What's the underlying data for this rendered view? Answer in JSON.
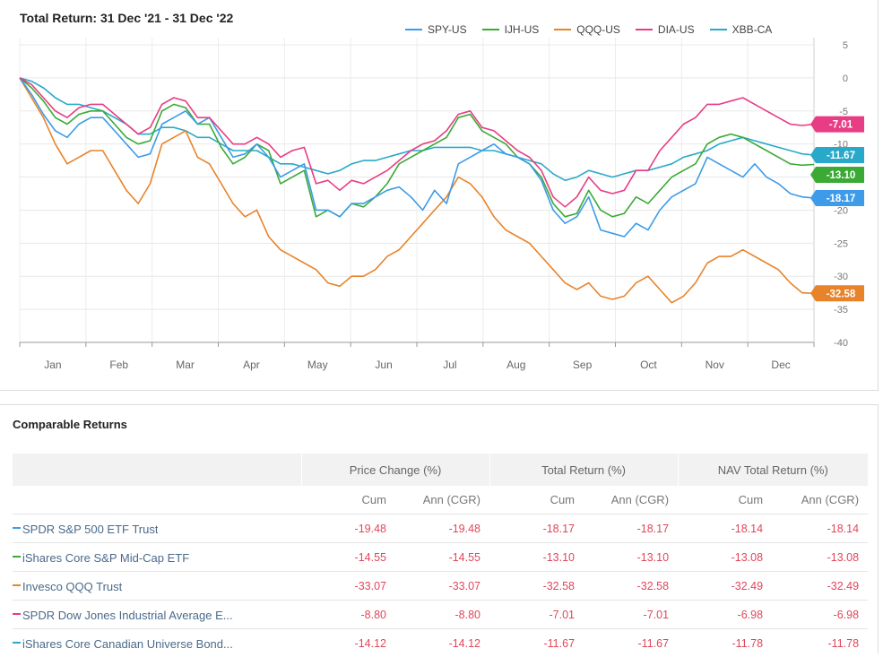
{
  "chart_data": {
    "type": "line",
    "title": "Total Return: 31 Dec '21 - 31 Dec '22",
    "months": [
      "Jan",
      "Feb",
      "Mar",
      "Apr",
      "May",
      "Jun",
      "Jul",
      "Aug",
      "Sep",
      "Oct",
      "Nov",
      "Dec"
    ],
    "y_ticks": [
      5,
      0,
      -5,
      -10,
      -15,
      -20,
      -25,
      -30,
      -35,
      -40
    ],
    "ylim": [
      -40,
      5
    ],
    "grid": true,
    "legend_position": "top-right",
    "series": [
      {
        "name": "SPY-US",
        "color": "#3d9be9",
        "end_label": "-18.17",
        "values": [
          0,
          -2.5,
          -5.5,
          -8,
          -9,
          -7,
          -6,
          -6,
          -8,
          -10,
          -12,
          -11.5,
          -7,
          -6,
          -5,
          -7,
          -6,
          -9,
          -12,
          -11.5,
          -10,
          -12,
          -15,
          -14,
          -13,
          -20,
          -20,
          -21,
          -19,
          -19,
          -18,
          -17,
          -16.5,
          -18,
          -20,
          -17,
          -19,
          -13,
          -12,
          -11,
          -10,
          -11.5,
          -12,
          -13,
          -15.5,
          -20,
          -22,
          -21,
          -18,
          -23,
          -23.5,
          -24,
          -22,
          -23,
          -20,
          -18,
          -17,
          -16,
          -12,
          -13,
          -14,
          -15,
          -13,
          -15,
          -16,
          -17.5,
          -18,
          -18.17
        ]
      },
      {
        "name": "IJH-US",
        "color": "#3aaa35",
        "end_label": "-13.10",
        "values": [
          0,
          -1.5,
          -3.5,
          -6,
          -7,
          -5.5,
          -5,
          -5,
          -7,
          -9,
          -10,
          -9.5,
          -5,
          -4,
          -4.5,
          -7,
          -7,
          -10.5,
          -13,
          -12,
          -10,
          -11,
          -16,
          -15,
          -14,
          -21,
          -20,
          -21,
          -19,
          -19.5,
          -18,
          -16,
          -13,
          -12,
          -11,
          -10,
          -9,
          -6,
          -5.5,
          -8,
          -9,
          -10,
          -12,
          -13,
          -15,
          -19,
          -21,
          -20.5,
          -17,
          -20,
          -21,
          -20.5,
          -18,
          -19,
          -17,
          -15,
          -14,
          -13,
          -10,
          -9,
          -8.5,
          -9,
          -10,
          -11,
          -12,
          -13,
          -13.2,
          -13.1
        ]
      },
      {
        "name": "QQQ-US",
        "color": "#e8832a",
        "end_label": "-32.58",
        "values": [
          0,
          -3,
          -6,
          -10,
          -13,
          -12,
          -11,
          -11,
          -14,
          -17,
          -19,
          -16,
          -10,
          -9,
          -8,
          -12,
          -13,
          -16,
          -19,
          -21,
          -20,
          -24,
          -26,
          -27,
          -28,
          -29,
          -31,
          -31.5,
          -30,
          -30,
          -29,
          -27,
          -26,
          -24,
          -22,
          -20,
          -18,
          -15,
          -16,
          -18,
          -21,
          -23,
          -24,
          -25,
          -27,
          -29,
          -31,
          -32,
          -31,
          -33,
          -33.5,
          -33,
          -31,
          -30,
          -32,
          -34,
          -33,
          -31,
          -28,
          -27,
          -27,
          -26,
          -27,
          -28,
          -29,
          -31,
          -32.5,
          -32.58
        ]
      },
      {
        "name": "DIA-US",
        "color": "#e83d84",
        "end_label": "-7.01",
        "values": [
          0,
          -1,
          -3,
          -5,
          -6,
          -4.5,
          -4,
          -4,
          -5.5,
          -7,
          -8.5,
          -7.5,
          -4,
          -3,
          -3.5,
          -6,
          -6,
          -8,
          -10,
          -10,
          -9,
          -10,
          -12,
          -11,
          -10.5,
          -16,
          -15.5,
          -17,
          -15.5,
          -16,
          -15,
          -14,
          -12.5,
          -11,
          -10,
          -9.5,
          -8,
          -5.5,
          -5,
          -7.5,
          -8,
          -9.5,
          -11,
          -12,
          -14,
          -18,
          -19.5,
          -18,
          -15,
          -17,
          -17.5,
          -17,
          -14,
          -14,
          -11,
          -9,
          -7,
          -6,
          -4,
          -4,
          -3.5,
          -3,
          -4,
          -5,
          -6,
          -7,
          -7.2,
          -7.01
        ]
      },
      {
        "name": "XBB-CA",
        "color": "#29a9c9",
        "end_label": "-11.67",
        "values": [
          0,
          -0.5,
          -1.5,
          -3,
          -4,
          -4,
          -4.5,
          -5,
          -6,
          -7,
          -8.5,
          -8.5,
          -7.5,
          -7.5,
          -8,
          -9,
          -9,
          -10,
          -11,
          -11,
          -11,
          -12,
          -13,
          -13,
          -13.5,
          -14,
          -14.5,
          -14,
          -13,
          -12.5,
          -12.5,
          -12,
          -11.5,
          -11,
          -11,
          -10.5,
          -10.5,
          -10.5,
          -10.5,
          -11,
          -11,
          -11.5,
          -12,
          -12.5,
          -13,
          -14.5,
          -15.5,
          -15,
          -14,
          -14.5,
          -15,
          -14.5,
          -14,
          -14,
          -13.5,
          -13,
          -12,
          -11.5,
          -11,
          -10,
          -9.5,
          -9,
          -9.5,
          -10,
          -10.5,
          -11,
          -11.5,
          -11.67
        ]
      }
    ],
    "label_order": [
      "DIA-US",
      "XBB-CA",
      "IJH-US",
      "SPY-US",
      "QQQ-US"
    ]
  },
  "returns": {
    "title": "Comparable Returns",
    "groups": [
      "Price Change (%)",
      "Total Return (%)",
      "NAV Total Return (%)"
    ],
    "subheaders": [
      "Cum",
      "Ann (CGR)",
      "Cum",
      "Ann (CGR)",
      "Cum",
      "Ann (CGR)"
    ],
    "rows": [
      {
        "name": "SPDR S&P 500 ETF Trust",
        "color": "#3d9be9",
        "values": [
          "-19.48",
          "-19.48",
          "-18.17",
          "-18.17",
          "-18.14",
          "-18.14"
        ]
      },
      {
        "name": "iShares Core S&P Mid-Cap ETF",
        "color": "#3aaa35",
        "values": [
          "-14.55",
          "-14.55",
          "-13.10",
          "-13.10",
          "-13.08",
          "-13.08"
        ]
      },
      {
        "name": "Invesco QQQ Trust",
        "color": "#e8832a",
        "values": [
          "-33.07",
          "-33.07",
          "-32.58",
          "-32.58",
          "-32.49",
          "-32.49"
        ]
      },
      {
        "name": "SPDR Dow Jones Industrial Average E...",
        "color": "#e83d84",
        "values": [
          "-8.80",
          "-8.80",
          "-7.01",
          "-7.01",
          "-6.98",
          "-6.98"
        ]
      },
      {
        "name": "iShares Core Canadian Universe Bond...",
        "color": "#29a9c9",
        "values": [
          "-14.12",
          "-14.12",
          "-11.67",
          "-11.67",
          "-11.78",
          "-11.78"
        ]
      }
    ]
  }
}
